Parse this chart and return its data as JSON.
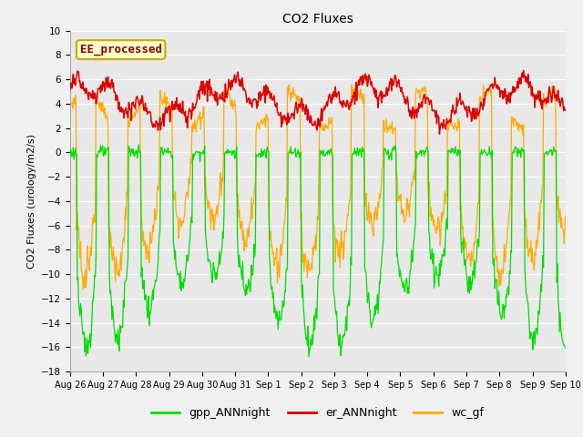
{
  "title": "CO2 Fluxes",
  "ylabel": "CO2 Fluxes (urology/m2/s)",
  "ylim": [
    -18,
    10
  ],
  "yticks": [
    -18,
    -16,
    -14,
    -12,
    -10,
    -8,
    -6,
    -4,
    -2,
    0,
    2,
    4,
    6,
    8,
    10
  ],
  "xtick_labels": [
    "Aug 26",
    "Aug 27",
    "Aug 28",
    "Aug 29",
    "Aug 30",
    "Aug 31",
    "Sep 1",
    "Sep 2",
    "Sep 3",
    "Sep 4",
    "Sep 5",
    "Sep 6",
    "Sep 7",
    "Sep 8",
    "Sep 9",
    "Sep 10"
  ],
  "annotation_text": "EE_processed",
  "annotation_color": "#880000",
  "annotation_bg": "#ffffcc",
  "annotation_border": "#ccaa00",
  "colors": {
    "gpp_ANNnight": "#00dd00",
    "er_ANNnight": "#dd0000",
    "wc_gf": "#ffaa00"
  },
  "legend_labels": [
    "gpp_ANNnight",
    "er_ANNnight",
    "wc_gf"
  ],
  "fig_bg": "#f0f0f0",
  "ax_bg": "#e8e8e8",
  "grid_color": "#ffffff",
  "n_days": 15.5,
  "n_per_day": 48
}
